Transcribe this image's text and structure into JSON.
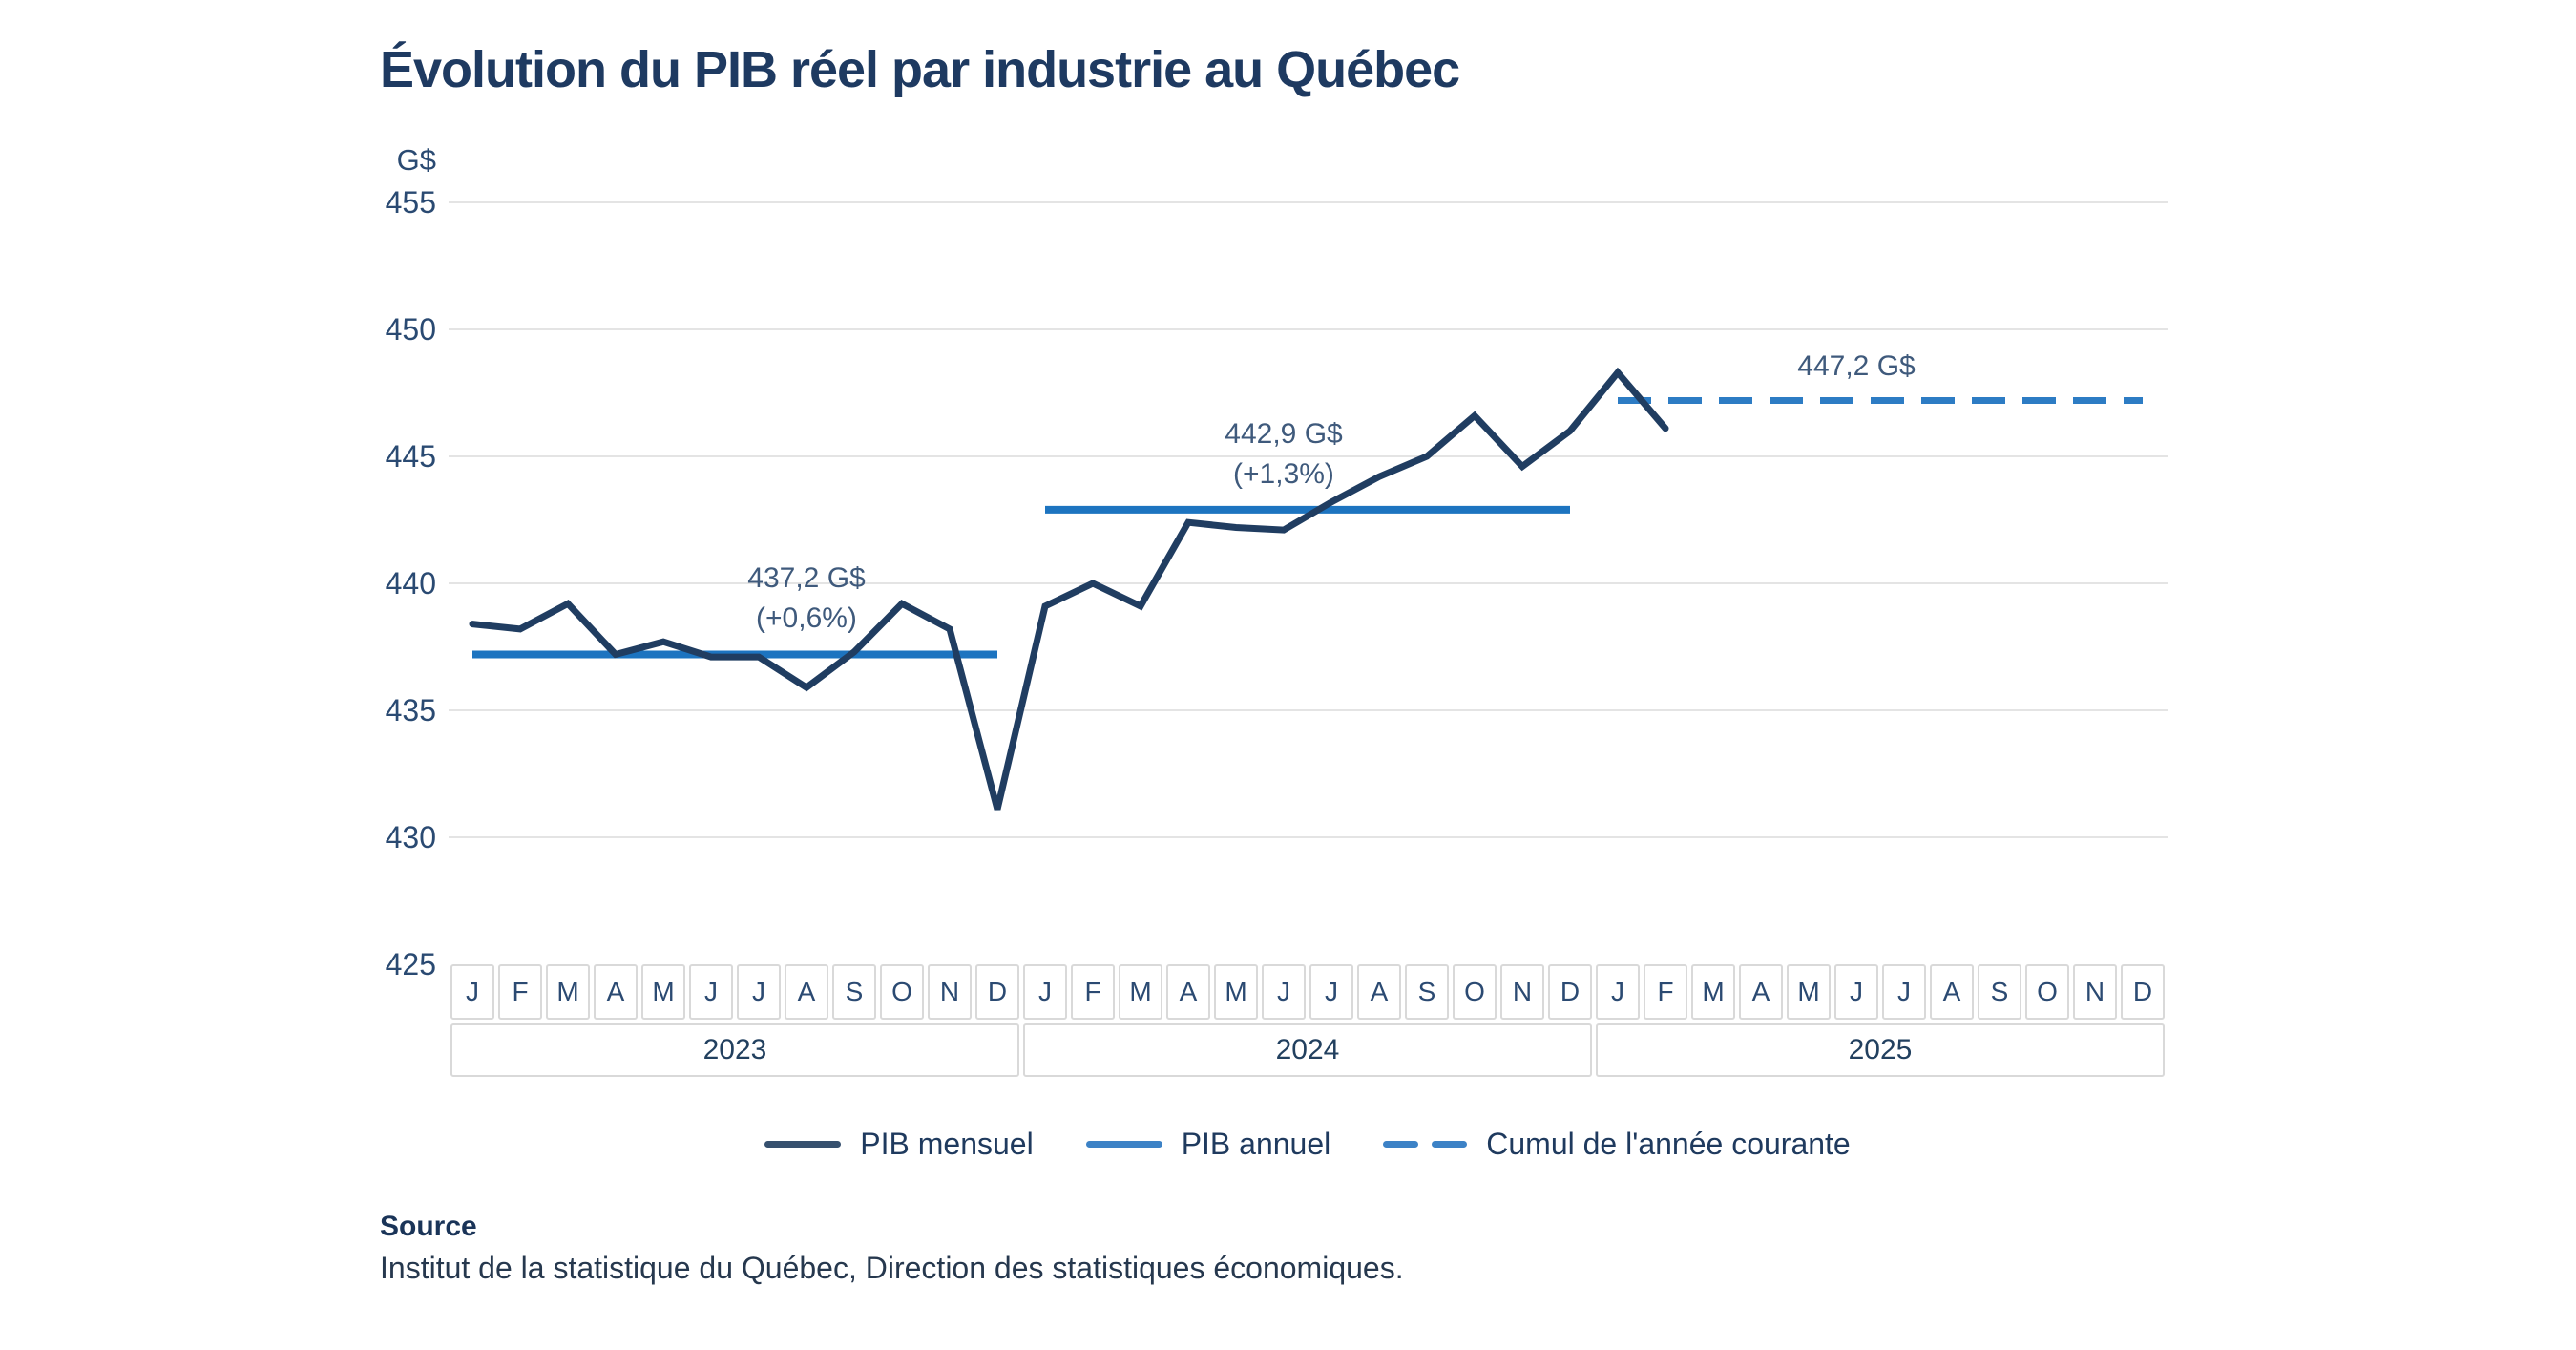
{
  "title": "Évolution du PIB réel par industrie au Québec",
  "source": {
    "heading": "Source",
    "text": "Institut de la statistique du Québec, Direction des statistiques économiques."
  },
  "chart_data": {
    "type": "line",
    "title": "Évolution du PIB réel par industrie au Québec",
    "ylabel": "G$",
    "ylim": [
      425,
      455
    ],
    "yticks": [
      455,
      450,
      445,
      440,
      435,
      430,
      425
    ],
    "grid": true,
    "legend_position": "bottom",
    "month_letters": [
      "J",
      "F",
      "M",
      "A",
      "M",
      "J",
      "J",
      "A",
      "S",
      "O",
      "N",
      "D"
    ],
    "years": [
      "2023",
      "2024",
      "2025"
    ],
    "series": [
      {
        "name": "PIB mensuel",
        "type": "monthly",
        "color": "#203d61",
        "values_2023": [
          438.4,
          438.2,
          439.2,
          437.2,
          437.7,
          437.1,
          437.1,
          435.9,
          437.3,
          439.2,
          438.2,
          431.1
        ],
        "values_2024": [
          439.1,
          440.0,
          439.1,
          442.4,
          442.2,
          442.1,
          443.2,
          444.2,
          445.0,
          446.6,
          444.6,
          446.0
        ],
        "values_2025": [
          448.3,
          446.1
        ]
      },
      {
        "name": "PIB annuel",
        "type": "annual-average",
        "color": "#1d74c0",
        "segments": [
          {
            "year": "2023",
            "value": 437.2,
            "label": "437,2 G$",
            "change_label": "(+0,6%)"
          },
          {
            "year": "2024",
            "value": 442.9,
            "label": "442,9 G$",
            "change_label": "(+1,3%)"
          }
        ]
      },
      {
        "name": "Cumul de l'année courante",
        "type": "ytd-average",
        "color": "#2d7cc4",
        "segments": [
          {
            "year": "2025",
            "value": 447.2,
            "label": "447,2 G$"
          }
        ]
      }
    ]
  }
}
